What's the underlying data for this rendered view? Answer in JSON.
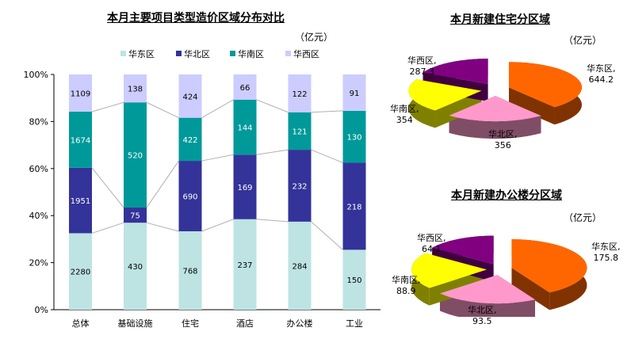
{
  "chart_data": [
    {
      "type": "bar",
      "stacked": "percent",
      "title": "本月主要项目类型造价区域分布对比",
      "unit": "（亿元）",
      "categories": [
        "总体",
        "基础设施",
        "住宅",
        "酒店",
        "办公楼",
        "工业"
      ],
      "series": [
        {
          "name": "华东区",
          "color": "#BEE3E3",
          "values": [
            2280,
            430,
            768,
            237,
            284,
            150
          ]
        },
        {
          "name": "华北区",
          "color": "#333399",
          "values": [
            1951,
            75,
            690,
            169,
            232,
            218
          ]
        },
        {
          "name": "华南区",
          "color": "#009999",
          "values": [
            1674,
            520,
            422,
            144,
            121,
            130
          ]
        },
        {
          "name": "华西区",
          "color": "#CCCCFF",
          "values": [
            1109,
            138,
            424,
            66,
            122,
            91
          ]
        }
      ],
      "yticks": [
        "0%",
        "20%",
        "40%",
        "60%",
        "80%",
        "100%"
      ],
      "ylim": [
        0,
        100
      ],
      "legend": "top"
    },
    {
      "type": "pie",
      "title": "本月新建住宅分区域",
      "unit": "（亿元）",
      "slices": [
        {
          "name": "华东区",
          "value": 644.2,
          "label": "644.2",
          "color": "#FF6600",
          "side": "#803300"
        },
        {
          "name": "华北区",
          "value": 356,
          "label": "356",
          "color": "#FF99CC",
          "side": "#804D66"
        },
        {
          "name": "华南区",
          "value": 354,
          "label": "354",
          "color": "#FFFF00",
          "side": "#808000"
        },
        {
          "name": "华西区",
          "value": 287.3,
          "label": "287.3",
          "color": "#800080",
          "side": "#400040"
        }
      ]
    },
    {
      "type": "pie",
      "title": "本月新建办公楼分区域",
      "unit": "（亿元）",
      "slices": [
        {
          "name": "华东区",
          "value": 175.8,
          "label": "175.8",
          "color": "#FF6600",
          "side": "#803300"
        },
        {
          "name": "华北区",
          "value": 93.5,
          "label": "93.5",
          "color": "#FF99CC",
          "side": "#804D66"
        },
        {
          "name": "华南区",
          "value": 88.9,
          "label": "88.9",
          "color": "#FFFF00",
          "side": "#808000"
        },
        {
          "name": "华西区",
          "value": 64.1,
          "label": "64.1",
          "color": "#800080",
          "side": "#400040"
        }
      ]
    }
  ]
}
